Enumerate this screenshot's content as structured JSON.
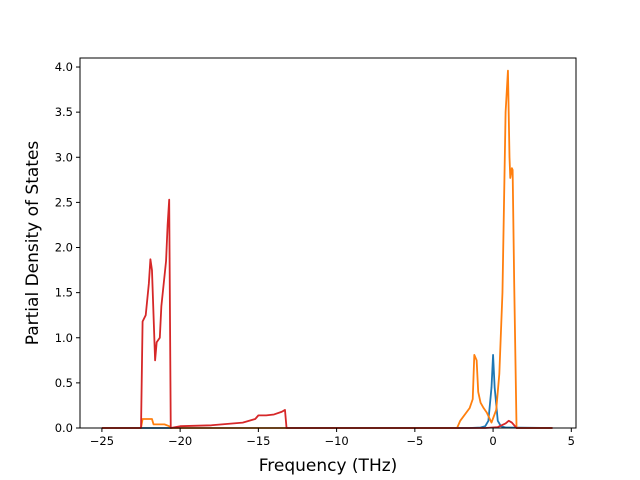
{
  "chart_data": {
    "type": "line",
    "title": "",
    "xlabel": "Frequency (THz)",
    "ylabel": "Partial Density of States",
    "xlim": [
      -26.4,
      5.3
    ],
    "ylim": [
      0,
      4.1
    ],
    "xticks": [
      -25,
      -20,
      -15,
      -10,
      -5,
      0,
      5
    ],
    "xtick_labels": [
      "−25",
      "−20",
      "−15",
      "−10",
      "−5",
      "0",
      "5"
    ],
    "yticks": [
      0,
      0.5,
      1.0,
      1.5,
      2.0,
      2.5,
      3.0,
      3.5,
      4.0
    ],
    "ytick_labels": [
      "0.0",
      "0.5",
      "1.0",
      "1.5",
      "2.0",
      "2.5",
      "3.0",
      "3.5",
      "4.0"
    ],
    "grid": false,
    "legend": "none",
    "series": [
      {
        "color": "#1f77b4",
        "x": [
          -25.0,
          -1.5,
          -0.8,
          -0.5,
          -0.3,
          -0.1,
          0.0,
          0.1,
          0.3,
          0.5,
          0.8,
          3.8
        ],
        "y": [
          0,
          0,
          0.005,
          0.02,
          0.08,
          0.45,
          0.81,
          0.45,
          0.08,
          0.02,
          0.005,
          0
        ]
      },
      {
        "color": "#ff7f0e",
        "x": [
          -25.0,
          -22.5,
          -22.4,
          -21.8,
          -21.7,
          -21.0,
          -20.7,
          -20.6,
          -2.3,
          -2.1,
          -1.5,
          -1.3,
          -1.2,
          -1.05,
          -0.95,
          -0.8,
          -0.6,
          -0.4,
          -0.1,
          0.2,
          0.4,
          0.6,
          0.8,
          0.95,
          1.05,
          1.1,
          1.2,
          1.25,
          1.35,
          1.5,
          3.8
        ],
        "y": [
          0,
          0,
          0.1,
          0.1,
          0.04,
          0.04,
          0.02,
          0,
          0,
          0.08,
          0.22,
          0.32,
          0.81,
          0.75,
          0.4,
          0.28,
          0.22,
          0.17,
          0.06,
          0.2,
          0.6,
          1.5,
          3.5,
          3.96,
          3.0,
          2.77,
          2.88,
          2.86,
          1.6,
          0,
          0
        ]
      },
      {
        "color": "#d62728",
        "x": [
          -25.0,
          -22.5,
          -22.4,
          -22.2,
          -22.0,
          -21.9,
          -21.8,
          -21.6,
          -21.5,
          -21.3,
          -21.2,
          -20.9,
          -20.8,
          -20.7,
          -20.6,
          -20.0,
          -18.0,
          -16.0,
          -15.2,
          -15.0,
          -14.5,
          -14.0,
          -13.5,
          -13.3,
          -13.2,
          -3.0,
          -0.5,
          0.3,
          0.8,
          1.0,
          1.2,
          1.5,
          3.8
        ],
        "y": [
          0,
          0,
          1.18,
          1.25,
          1.6,
          1.87,
          1.75,
          0.75,
          0.95,
          1.0,
          1.35,
          1.85,
          2.25,
          2.53,
          0,
          0.02,
          0.03,
          0.06,
          0.1,
          0.14,
          0.14,
          0.15,
          0.18,
          0.2,
          0,
          0,
          0,
          0.01,
          0.05,
          0.08,
          0.06,
          0,
          0
        ]
      }
    ]
  }
}
